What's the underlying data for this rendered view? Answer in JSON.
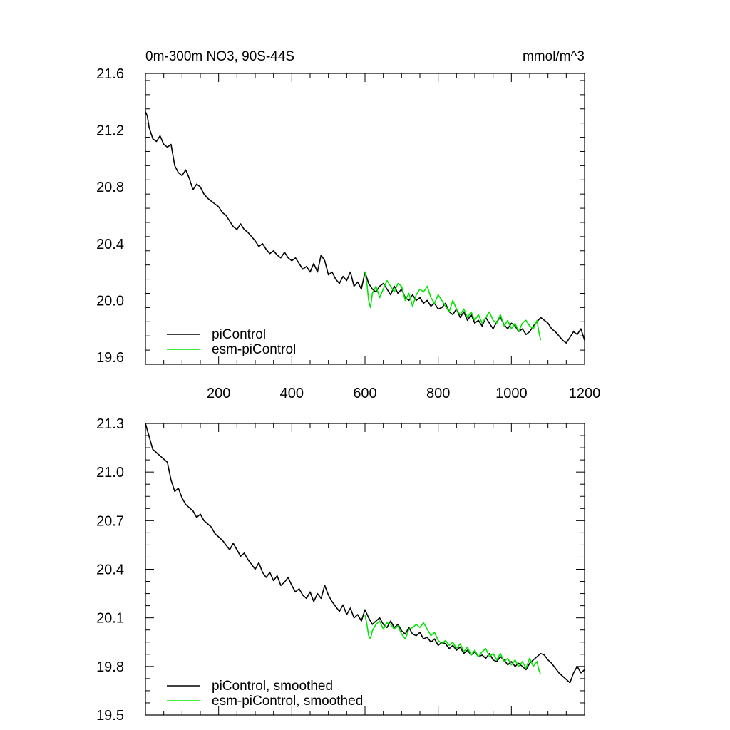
{
  "colors": {
    "piControl": "#000000",
    "esm_piControl": "#00e600",
    "frame": "#000000",
    "background": "#ffffff"
  },
  "chart_data": [
    {
      "type": "line",
      "title": "0m-300m NO3, 90S-44S",
      "units": "mmol/m^3",
      "xlabel": "",
      "ylabel": "",
      "xlim": [
        0,
        1200
      ],
      "ylim": [
        19.55,
        21.6
      ],
      "xticks": [
        200,
        400,
        600,
        800,
        1000,
        1200
      ],
      "yticks": [
        19.6,
        20.0,
        20.4,
        20.8,
        21.2,
        21.6
      ],
      "ytick_labels": [
        "19.6",
        "20.0",
        "20.4",
        "20.8",
        "21.2",
        "21.6"
      ],
      "xtick_labels": [
        "200",
        "400",
        "600",
        "800",
        "1000",
        "1200"
      ],
      "legend": "bottom-left",
      "series": [
        {
          "name": "piControl",
          "color_key": "piControl",
          "x": [
            0,
            5,
            10,
            20,
            30,
            40,
            50,
            60,
            70,
            80,
            90,
            100,
            110,
            120,
            130,
            140,
            150,
            160,
            170,
            180,
            190,
            200,
            210,
            220,
            230,
            240,
            250,
            260,
            270,
            280,
            290,
            300,
            310,
            320,
            330,
            340,
            350,
            360,
            370,
            380,
            390,
            400,
            410,
            420,
            430,
            440,
            450,
            460,
            470,
            480,
            490,
            500,
            510,
            520,
            530,
            540,
            550,
            560,
            570,
            580,
            590,
            600,
            610,
            620,
            630,
            640,
            650,
            660,
            670,
            680,
            690,
            700,
            710,
            720,
            730,
            740,
            750,
            760,
            770,
            780,
            790,
            800,
            810,
            820,
            830,
            840,
            850,
            860,
            870,
            880,
            890,
            900,
            910,
            920,
            930,
            940,
            950,
            960,
            970,
            980,
            990,
            1000,
            1010,
            1020,
            1030,
            1040,
            1050,
            1060,
            1070,
            1080,
            1090,
            1100,
            1110,
            1120,
            1130,
            1140,
            1150,
            1160,
            1170,
            1180,
            1190,
            1200
          ],
          "values": [
            21.33,
            21.3,
            21.22,
            21.14,
            21.12,
            21.16,
            21.1,
            21.08,
            21.1,
            20.95,
            20.9,
            20.88,
            20.92,
            20.86,
            20.78,
            20.82,
            20.8,
            20.75,
            20.72,
            20.7,
            20.68,
            20.66,
            20.62,
            20.6,
            20.56,
            20.52,
            20.5,
            20.54,
            20.5,
            20.48,
            20.45,
            20.42,
            20.38,
            20.4,
            20.36,
            20.33,
            20.35,
            20.32,
            20.3,
            20.34,
            20.3,
            20.28,
            20.3,
            20.26,
            20.22,
            20.24,
            20.2,
            20.26,
            20.2,
            20.32,
            20.28,
            20.18,
            20.2,
            20.15,
            20.12,
            20.17,
            20.14,
            20.2,
            20.1,
            20.13,
            20.08,
            20.2,
            20.12,
            20.08,
            20.06,
            20.1,
            20.12,
            20.08,
            20.04,
            20.1,
            20.05,
            20.08,
            20.02,
            20.0,
            20.04,
            20.0,
            20.02,
            19.98,
            20.0,
            19.96,
            19.98,
            19.94,
            19.95,
            19.98,
            19.92,
            19.9,
            19.94,
            19.88,
            19.92,
            19.86,
            19.9,
            19.84,
            19.86,
            19.82,
            19.88,
            19.84,
            19.8,
            19.85,
            19.88,
            19.83,
            19.8,
            19.84,
            19.82,
            19.78,
            19.8,
            19.76,
            19.78,
            19.82,
            19.85,
            19.88,
            19.86,
            19.84,
            19.8,
            19.78,
            19.75,
            19.72,
            19.7,
            19.74,
            19.78,
            19.76,
            19.8,
            19.72
          ]
        },
        {
          "name": "esm-piControl",
          "color_key": "esm_piControl",
          "x": [
            600,
            605,
            610,
            615,
            620,
            630,
            640,
            650,
            660,
            670,
            680,
            690,
            700,
            710,
            720,
            730,
            740,
            750,
            760,
            770,
            780,
            790,
            800,
            810,
            820,
            830,
            840,
            850,
            860,
            870,
            880,
            890,
            900,
            910,
            920,
            930,
            940,
            950,
            960,
            970,
            980,
            990,
            1000,
            1010,
            1020,
            1030,
            1040,
            1050,
            1060,
            1070,
            1075,
            1080
          ],
          "values": [
            20.2,
            20.12,
            20.0,
            19.95,
            20.05,
            20.1,
            20.02,
            20.08,
            20.14,
            20.1,
            20.06,
            20.12,
            20.1,
            20.0,
            20.05,
            19.96,
            20.04,
            20.08,
            20.06,
            20.1,
            20.02,
            19.98,
            20.04,
            20.0,
            19.96,
            19.92,
            20.0,
            19.94,
            19.9,
            19.94,
            19.88,
            19.92,
            19.86,
            19.9,
            19.84,
            19.88,
            19.92,
            19.86,
            19.84,
            19.9,
            19.82,
            19.86,
            19.8,
            19.84,
            19.78,
            19.84,
            19.86,
            19.82,
            19.8,
            19.86,
            19.78,
            19.72
          ]
        }
      ]
    },
    {
      "type": "line",
      "title": "",
      "xlabel": "",
      "ylabel": "",
      "xlim": [
        0,
        1200
      ],
      "ylim": [
        19.5,
        21.3
      ],
      "xticks": [
        200,
        400,
        600,
        800,
        1000,
        1200
      ],
      "yticks": [
        19.5,
        19.8,
        20.1,
        20.4,
        20.7,
        21.0,
        21.3
      ],
      "ytick_labels": [
        "19.5",
        "19.8",
        "20.1",
        "20.4",
        "20.7",
        "21.0",
        "21.3"
      ],
      "legend": "bottom-left",
      "series": [
        {
          "name": "piControl, smoothed",
          "color_key": "piControl",
          "x": [
            0,
            10,
            20,
            30,
            40,
            50,
            60,
            70,
            80,
            90,
            100,
            110,
            120,
            130,
            140,
            150,
            160,
            170,
            180,
            190,
            200,
            210,
            220,
            230,
            240,
            250,
            260,
            270,
            280,
            290,
            300,
            310,
            320,
            330,
            340,
            350,
            360,
            370,
            380,
            390,
            400,
            410,
            420,
            430,
            440,
            450,
            460,
            470,
            480,
            490,
            500,
            510,
            520,
            530,
            540,
            550,
            560,
            570,
            580,
            590,
            600,
            610,
            620,
            630,
            640,
            650,
            660,
            670,
            680,
            690,
            700,
            710,
            720,
            730,
            740,
            750,
            760,
            770,
            780,
            790,
            800,
            810,
            820,
            830,
            840,
            850,
            860,
            870,
            880,
            890,
            900,
            910,
            920,
            930,
            940,
            950,
            960,
            970,
            980,
            990,
            1000,
            1010,
            1020,
            1030,
            1040,
            1050,
            1060,
            1070,
            1080,
            1090,
            1100,
            1110,
            1120,
            1130,
            1140,
            1150,
            1160,
            1170,
            1180,
            1190,
            1200
          ],
          "values": [
            21.3,
            21.22,
            21.14,
            21.12,
            21.1,
            21.08,
            21.06,
            20.95,
            20.88,
            20.9,
            20.84,
            20.8,
            20.78,
            20.76,
            20.72,
            20.74,
            20.7,
            20.68,
            20.66,
            20.62,
            20.6,
            20.58,
            20.55,
            20.52,
            20.56,
            20.52,
            20.48,
            20.5,
            20.46,
            20.43,
            20.4,
            20.44,
            20.38,
            20.35,
            20.38,
            20.33,
            20.36,
            20.3,
            20.32,
            20.35,
            20.3,
            20.26,
            20.28,
            20.24,
            20.22,
            20.26,
            20.2,
            20.25,
            20.22,
            20.3,
            20.24,
            20.2,
            20.17,
            20.14,
            20.18,
            20.12,
            20.16,
            20.1,
            20.12,
            20.08,
            20.15,
            20.1,
            20.06,
            20.08,
            20.1,
            20.06,
            20.04,
            20.08,
            20.04,
            20.06,
            20.02,
            20.0,
            20.04,
            20.0,
            19.99,
            20.01,
            19.97,
            19.98,
            19.95,
            19.97,
            19.93,
            19.95,
            19.94,
            19.91,
            19.93,
            19.9,
            19.92,
            19.88,
            19.9,
            19.87,
            19.89,
            19.86,
            19.87,
            19.85,
            19.88,
            19.84,
            19.83,
            19.86,
            19.84,
            19.81,
            19.83,
            19.8,
            19.82,
            19.8,
            19.78,
            19.82,
            19.84,
            19.86,
            19.88,
            19.87,
            19.84,
            19.82,
            19.79,
            19.76,
            19.74,
            19.72,
            19.7,
            19.76,
            19.8,
            19.76,
            19.78
          ]
        },
        {
          "name": "esm-piControl, smoothed",
          "color_key": "esm_piControl",
          "x": [
            600,
            605,
            610,
            615,
            620,
            630,
            640,
            650,
            660,
            670,
            680,
            690,
            700,
            710,
            720,
            730,
            740,
            750,
            760,
            770,
            780,
            790,
            800,
            810,
            820,
            830,
            840,
            850,
            860,
            870,
            880,
            890,
            900,
            910,
            920,
            930,
            940,
            950,
            960,
            970,
            980,
            990,
            1000,
            1010,
            1020,
            1030,
            1040,
            1050,
            1060,
            1070,
            1075,
            1080
          ],
          "values": [
            20.12,
            20.06,
            19.99,
            19.97,
            20.02,
            20.06,
            20.08,
            20.03,
            20.07,
            20.06,
            20.03,
            20.05,
            20.0,
            19.97,
            20.03,
            20.04,
            20.06,
            20.04,
            20.07,
            20.03,
            19.99,
            20.01,
            19.96,
            19.94,
            19.96,
            19.93,
            19.95,
            19.91,
            19.94,
            19.89,
            19.92,
            19.87,
            19.9,
            19.86,
            19.89,
            19.91,
            19.86,
            19.88,
            19.84,
            19.88,
            19.83,
            19.85,
            19.81,
            19.84,
            19.8,
            19.83,
            19.79,
            19.85,
            19.8,
            19.83,
            19.78,
            19.75
          ]
        }
      ]
    }
  ]
}
